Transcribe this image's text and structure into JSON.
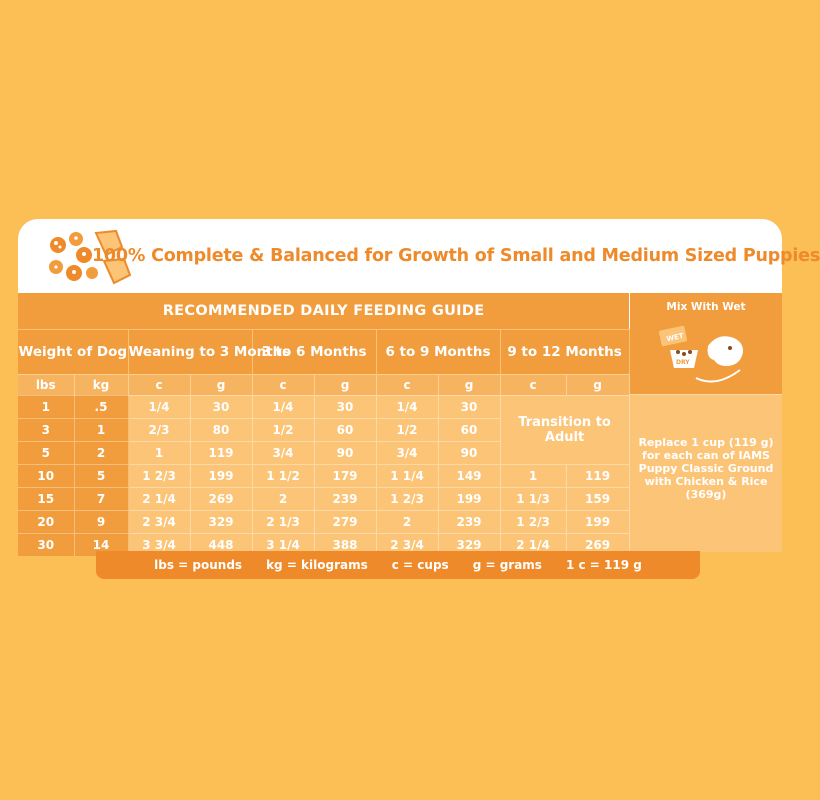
{
  "headline": "100% Complete & Balanced for Growth of Small and Medium Sized Puppies",
  "guide_title": "RECOMMENDED DAILY FEEDING GUIDE",
  "weight_header": "Weight of Dog",
  "age_groups": [
    "Weaning to 3 Months",
    "3 to 6 Months",
    "6 to 9 Months",
    "9 to 12 Months"
  ],
  "unit_headers": {
    "lbs": "lbs",
    "kg": "kg",
    "cups": "c",
    "grams": "g"
  },
  "transition_text": "Transition to Adult",
  "rows": [
    {
      "lbs": "1",
      "kg": ".5",
      "a_c": "1/4",
      "a_g": "30",
      "b_c": "1/4",
      "b_g": "30",
      "c_c": "1/4",
      "c_g": "30",
      "d_c": "",
      "d_g": ""
    },
    {
      "lbs": "3",
      "kg": "1",
      "a_c": "2/3",
      "a_g": "80",
      "b_c": "1/2",
      "b_g": "60",
      "c_c": "1/2",
      "c_g": "60",
      "d_c": "",
      "d_g": ""
    },
    {
      "lbs": "5",
      "kg": "2",
      "a_c": "1",
      "a_g": "119",
      "b_c": "3/4",
      "b_g": "90",
      "c_c": "3/4",
      "c_g": "90",
      "d_c": "",
      "d_g": ""
    },
    {
      "lbs": "10",
      "kg": "5",
      "a_c": "1  2/3",
      "a_g": "199",
      "b_c": "1  1/2",
      "b_g": "179",
      "c_c": "1  1/4",
      "c_g": "149",
      "d_c": "1",
      "d_g": "119"
    },
    {
      "lbs": "15",
      "kg": "7",
      "a_c": "2  1/4",
      "a_g": "269",
      "b_c": "2",
      "b_g": "239",
      "c_c": "1  2/3",
      "c_g": "199",
      "d_c": "1  1/3",
      "d_g": "159"
    },
    {
      "lbs": "20",
      "kg": "9",
      "a_c": "2  3/4",
      "a_g": "329",
      "b_c": "2  1/3",
      "b_g": "279",
      "c_c": "2",
      "c_g": "239",
      "d_c": "1  2/3",
      "d_g": "199"
    },
    {
      "lbs": "30",
      "kg": "14",
      "a_c": "3  3/4",
      "a_g": "448",
      "b_c": "3  1/4",
      "b_g": "388",
      "c_c": "2  3/4",
      "c_g": "329",
      "d_c": "2  1/4",
      "d_g": "269"
    }
  ],
  "mix_with_wet": "Mix With Wet",
  "mix_art_labels": {
    "wet": "WET",
    "dry": "DRY"
  },
  "replace_text": "Replace 1 cup (119 g) for each can of IAMS Puppy Classic Ground with Chicken & Rice (369g)",
  "legend": [
    "lbs = pounds",
    "kg = kilograms",
    "c = cups",
    "g = grams",
    "1 c = 119 g"
  ],
  "colors": {
    "background": "#FBBF55",
    "card": "#FFFFFF",
    "accent_dark": "#EE8A2A",
    "accent_mid": "#F19D3D",
    "accent_light": "#FBC477"
  }
}
